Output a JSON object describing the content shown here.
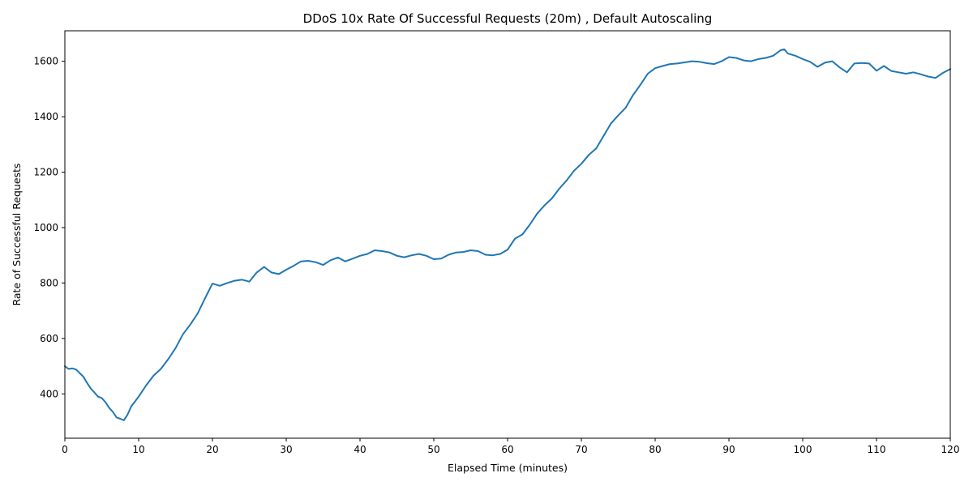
{
  "chart_data": {
    "type": "line",
    "title": "DDoS 10x Rate Of Successful Requests (20m) , Default Autoscaling",
    "xlabel": "Elapsed Time (minutes)",
    "ylabel": "Rate of Successful Requests",
    "xlim": [
      0,
      120
    ],
    "ylim": [
      240,
      1710
    ],
    "xticks": [
      0,
      10,
      20,
      30,
      40,
      50,
      60,
      70,
      80,
      90,
      100,
      110,
      120
    ],
    "yticks": [
      400,
      600,
      800,
      1000,
      1200,
      1400,
      1600
    ],
    "grid": false,
    "line_color": "#1f77b4",
    "series": [
      {
        "x": [
          0,
          0.5,
          1,
          1.5,
          2,
          2.5,
          3,
          3.5,
          4,
          4.5,
          5,
          5.5,
          6,
          6.5,
          7,
          7.5,
          8,
          8.5,
          9,
          9.5,
          10,
          11,
          12,
          13,
          14,
          15,
          16,
          17,
          18,
          19,
          20,
          21,
          22,
          23,
          24,
          25,
          26,
          27,
          28,
          29,
          30,
          31,
          32,
          33,
          34,
          35,
          36,
          37,
          38,
          39,
          40,
          41,
          42,
          43,
          44,
          45,
          46,
          47,
          48,
          49,
          50,
          51,
          52,
          53,
          54,
          55,
          56,
          57,
          58,
          59,
          60,
          61,
          62,
          63,
          64,
          65,
          66,
          67,
          68,
          69,
          70,
          71,
          72,
          73,
          74,
          75,
          76,
          77,
          78,
          79,
          80,
          81,
          82,
          83,
          84,
          85,
          86,
          87,
          88,
          89,
          90,
          91,
          92,
          93,
          94,
          95,
          96,
          97,
          97.5,
          98,
          99,
          100,
          101,
          102,
          103,
          104,
          105,
          106,
          107,
          108,
          109,
          110,
          111,
          112,
          113,
          114,
          115,
          116,
          117,
          118,
          119,
          120
        ],
        "y": [
          500,
          490,
          492,
          488,
          475,
          462,
          440,
          420,
          405,
          390,
          385,
          370,
          350,
          335,
          315,
          310,
          305,
          325,
          355,
          372,
          390,
          430,
          465,
          490,
          525,
          565,
          615,
          650,
          690,
          745,
          798,
          790,
          800,
          808,
          812,
          805,
          838,
          858,
          838,
          832,
          848,
          862,
          878,
          880,
          875,
          865,
          882,
          892,
          878,
          888,
          898,
          905,
          918,
          915,
          910,
          898,
          893,
          900,
          905,
          898,
          886,
          888,
          902,
          910,
          912,
          918,
          915,
          902,
          900,
          905,
          920,
          960,
          975,
          1010,
          1050,
          1080,
          1105,
          1140,
          1170,
          1205,
          1230,
          1262,
          1285,
          1330,
          1375,
          1405,
          1432,
          1478,
          1515,
          1555,
          1575,
          1583,
          1590,
          1592,
          1596,
          1600,
          1598,
          1593,
          1590,
          1600,
          1615,
          1612,
          1603,
          1600,
          1608,
          1612,
          1620,
          1640,
          1643,
          1628,
          1620,
          1608,
          1598,
          1580,
          1595,
          1600,
          1578,
          1560,
          1592,
          1594,
          1592,
          1566,
          1583,
          1565,
          1560,
          1555,
          1560,
          1553,
          1545,
          1540,
          1558,
          1572
        ]
      }
    ]
  }
}
